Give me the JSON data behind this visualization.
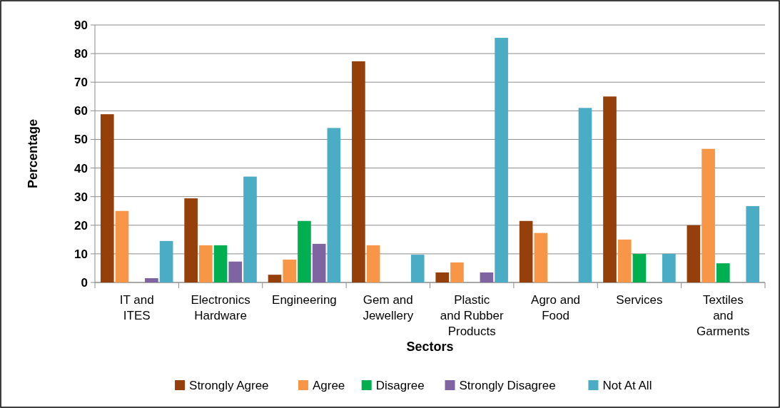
{
  "chart_data": {
    "type": "bar",
    "xlabel": "Sectors",
    "ylabel": "Percentage",
    "categories": [
      "IT and ITES",
      "Electronics Hardware",
      "Engineering",
      "Gem and Jewellery",
      "Plastic and Rubber Products",
      "Agro and Food",
      "Services",
      "Textiles and Garments"
    ],
    "series": [
      {
        "name": "Strongly Agree",
        "color": "#953f0a",
        "values": [
          58.8,
          29.4,
          2.7,
          77.3,
          3.5,
          21.5,
          65,
          20
        ]
      },
      {
        "name": "Agree",
        "color": "#f79646",
        "values": [
          25,
          13,
          8,
          13,
          7,
          17.3,
          15,
          46.7
        ]
      },
      {
        "name": "Disagree",
        "color": "#00b050",
        "values": [
          0,
          13,
          21.5,
          0,
          0,
          0,
          10,
          6.7
        ]
      },
      {
        "name": "Strongly Disagree",
        "color": "#8064a2",
        "values": [
          1.5,
          7.3,
          13.5,
          0,
          3.5,
          0,
          0,
          0
        ]
      },
      {
        "name": "Not At All",
        "color": "#4bacc6",
        "values": [
          14.5,
          37,
          54,
          9.7,
          85.5,
          61,
          10,
          26.7
        ]
      }
    ],
    "ylim": [
      0,
      90
    ],
    "yticks": [
      0,
      10,
      20,
      30,
      40,
      50,
      60,
      70,
      80,
      90
    ],
    "grid": "y",
    "legend": "bottom"
  }
}
